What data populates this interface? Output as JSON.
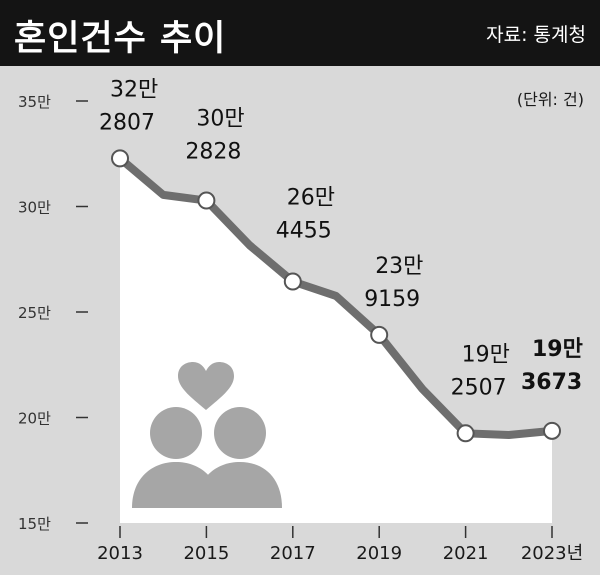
{
  "header": {
    "title": "혼인건수 추이",
    "source": "자료: 통계청"
  },
  "chart_data": {
    "type": "line",
    "unit_label": "(단위: 건)",
    "x": [
      "2013",
      "2014",
      "2015",
      "2016",
      "2017",
      "2018",
      "2019",
      "2020",
      "2021",
      "2022",
      "2023"
    ],
    "x_tick_labels": [
      "2013",
      "2015",
      "2017",
      "2019",
      "2021",
      "2023년"
    ],
    "x_tick_years": [
      "2013",
      "2015",
      "2017",
      "2019",
      "2021",
      "2023"
    ],
    "values": [
      322807,
      305507,
      302828,
      281635,
      264455,
      257622,
      239159,
      213502,
      192507,
      191690,
      193673
    ],
    "y_ticks": [
      150000,
      200000,
      250000,
      300000,
      350000
    ],
    "y_tick_labels": [
      "15만",
      "20만",
      "25만",
      "30만",
      "35만"
    ],
    "ylim": [
      150000,
      350000
    ],
    "data_labels": [
      {
        "year": "2013",
        "line1": "32만",
        "line2": "2807",
        "bold": false
      },
      {
        "year": "2015",
        "line1": "30만",
        "line2": "2828",
        "bold": false
      },
      {
        "year": "2017",
        "line1": "26만",
        "line2": "4455",
        "bold": false
      },
      {
        "year": "2019",
        "line1": "23만",
        "line2": "9159",
        "bold": false
      },
      {
        "year": "2021",
        "line1": "19만",
        "line2": "2507",
        "bold": false
      },
      {
        "year": "2023",
        "line1": "19만",
        "line2": "3673",
        "bold": true
      }
    ],
    "markers_at": [
      "2013",
      "2015",
      "2017",
      "2019",
      "2021",
      "2023"
    ],
    "colors": {
      "line": "#6e6e6e",
      "fill": "#ffffff",
      "background": "#d9d9d9",
      "decoration": "#a6a6a6"
    },
    "decoration_icon": "couple-heart-icon"
  }
}
